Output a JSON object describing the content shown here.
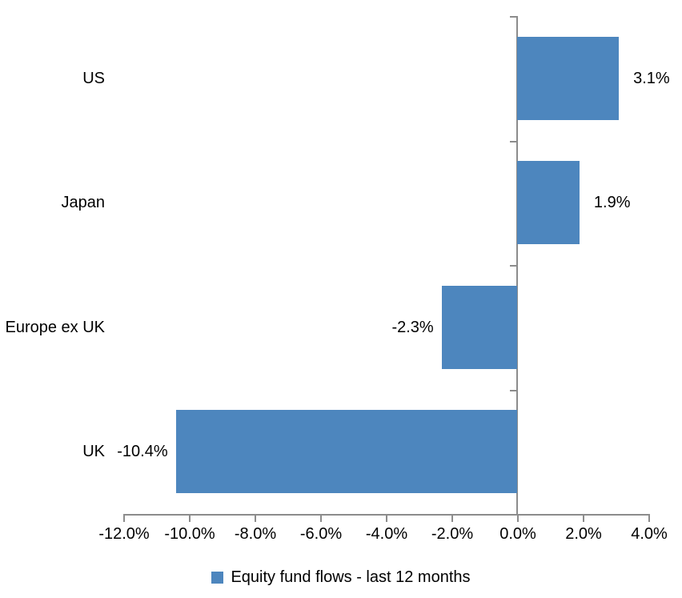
{
  "chart_data": {
    "type": "bar",
    "orientation": "horizontal",
    "title": "",
    "categories": [
      "US",
      "Japan",
      "Europe ex UK",
      "UK"
    ],
    "values": [
      3.1,
      1.9,
      -2.3,
      -10.4
    ],
    "data_labels": [
      "3.1%",
      "1.9%",
      "-2.3%",
      "-10.4%"
    ],
    "series_name": "Equity fund flows - last 12 months",
    "xlabel": "",
    "ylabel": "",
    "xlim": [
      -12,
      4
    ],
    "x_ticks": [
      -12,
      -10,
      -8,
      -6,
      -4,
      -2,
      0,
      2,
      4
    ],
    "x_tick_labels": [
      "-12.0%",
      "-10.0%",
      "-8.0%",
      "-6.0%",
      "-4.0%",
      "-2.0%",
      "0.0%",
      "2.0%",
      "4.0%"
    ],
    "grid": false,
    "legend_position": "bottom",
    "bar_color": "#4D86BE",
    "axis_color": "#8C8C8C",
    "text_color": "#000000",
    "background_color": "#FFFFFF"
  },
  "legend": {
    "label": "Equity fund flows - last 12 months"
  }
}
